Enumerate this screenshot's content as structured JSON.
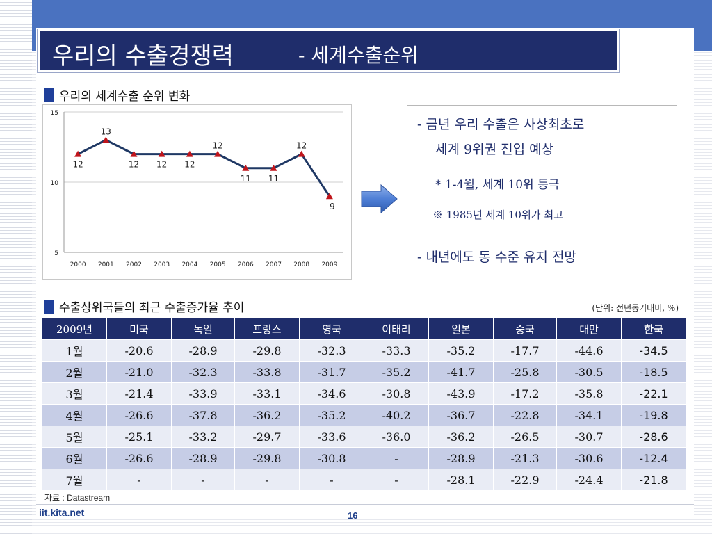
{
  "title": {
    "main": "우리의 수출경쟁력",
    "sub": "- 세계수출순위"
  },
  "section1": {
    "heading": "우리의 세계수출 순위 변화"
  },
  "chart_data": {
    "type": "line",
    "x": [
      "2000",
      "2001",
      "2002",
      "2003",
      "2004",
      "2005",
      "2006",
      "2007",
      "2008",
      "2009"
    ],
    "values": [
      12,
      13,
      12,
      12,
      12,
      12,
      11,
      11,
      12,
      9
    ],
    "yticks": [
      "15",
      "10",
      "5"
    ],
    "ylim": [
      5,
      15
    ],
    "ytick_values": [
      15,
      10,
      5
    ],
    "grid": true,
    "colors": {
      "line": "#1f3864",
      "marker": "#c0151b"
    }
  },
  "notes": {
    "line1a": "- 금년 우리 수출은 사상최초로",
    "line1b": "세계 9위권 진입 예상",
    "line2": "* 1-4월, 세계 10위 등극",
    "line3": "※ 1985년 세계 10위가 최고",
    "line4": "- 내년에도 동 수준 유지 전망"
  },
  "section2": {
    "heading": "수출상위국들의 최근 수출증가율 추이",
    "unit": "(단위: 전년동기대비, %)"
  },
  "table": {
    "headers": [
      "2009년",
      "미국",
      "독일",
      "프랑스",
      "영국",
      "이태리",
      "일본",
      "중국",
      "대만",
      "한국"
    ],
    "rows": [
      [
        "1월",
        "-20.6",
        "-28.9",
        "-29.8",
        "-32.3",
        "-33.3",
        "-35.2",
        "-17.7",
        "-44.6",
        "-34.5"
      ],
      [
        "2월",
        "-21.0",
        "-32.3",
        "-33.8",
        "-31.7",
        "-35.2",
        "-41.7",
        "-25.8",
        "-30.5",
        "-18.5"
      ],
      [
        "3월",
        "-21.4",
        "-33.9",
        "-33.1",
        "-34.6",
        "-30.8",
        "-43.9",
        "-17.2",
        "-35.8",
        "-22.1"
      ],
      [
        "4월",
        "-26.6",
        "-37.8",
        "-36.2",
        "-35.2",
        "-40.2",
        "-36.7",
        "-22.8",
        "-34.1",
        "-19.8"
      ],
      [
        "5월",
        "-25.1",
        "-33.2",
        "-29.7",
        "-33.6",
        "-36.0",
        "-36.2",
        "-26.5",
        "-30.7",
        "-28.6"
      ],
      [
        "6월",
        "-26.6",
        "-28.9",
        "-29.8",
        "-30.8",
        "-",
        "-28.9",
        "-21.3",
        "-30.6",
        "-12.4"
      ],
      [
        "7월",
        "-",
        "-",
        "-",
        "-",
        "-",
        "-28.1",
        "-22.9",
        "-24.4",
        "-21.8"
      ]
    ]
  },
  "source": "자료 : Datastream",
  "footer": {
    "site": "iit.kita.net",
    "page": "16"
  },
  "colors": {
    "title_bg": "#1f2d6b",
    "header_bg": "#1f2d6b",
    "row_odd": "#e9ecf5",
    "row_even": "#c6cde6",
    "band": "#4a72c0"
  }
}
